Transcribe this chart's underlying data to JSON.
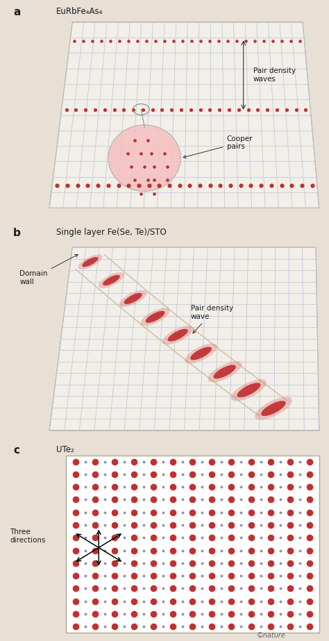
{
  "bg_color": "#e8e0d5",
  "grid_color": "#b8c4d4",
  "grid_bg": "#f2eee8",
  "dot_color": "#c03030",
  "dot_dark": "#8b1010",
  "dot_light_edge": "#e88080",
  "title_a": "EuRbFe₄As₄",
  "title_b": "Single layer Fe(Se, Te)/STO",
  "title_c": "UTe₂",
  "label_a": "a",
  "label_b": "b",
  "label_c": "c",
  "text_color": "#1a1a1a",
  "arrow_color": "#333333",
  "nature_text": "©nature",
  "small_dot_color": "#9090aa",
  "cooper_bg": "#f0a0a0",
  "domain_line_color": "#b8b090",
  "panel_edge": "#b0a898"
}
